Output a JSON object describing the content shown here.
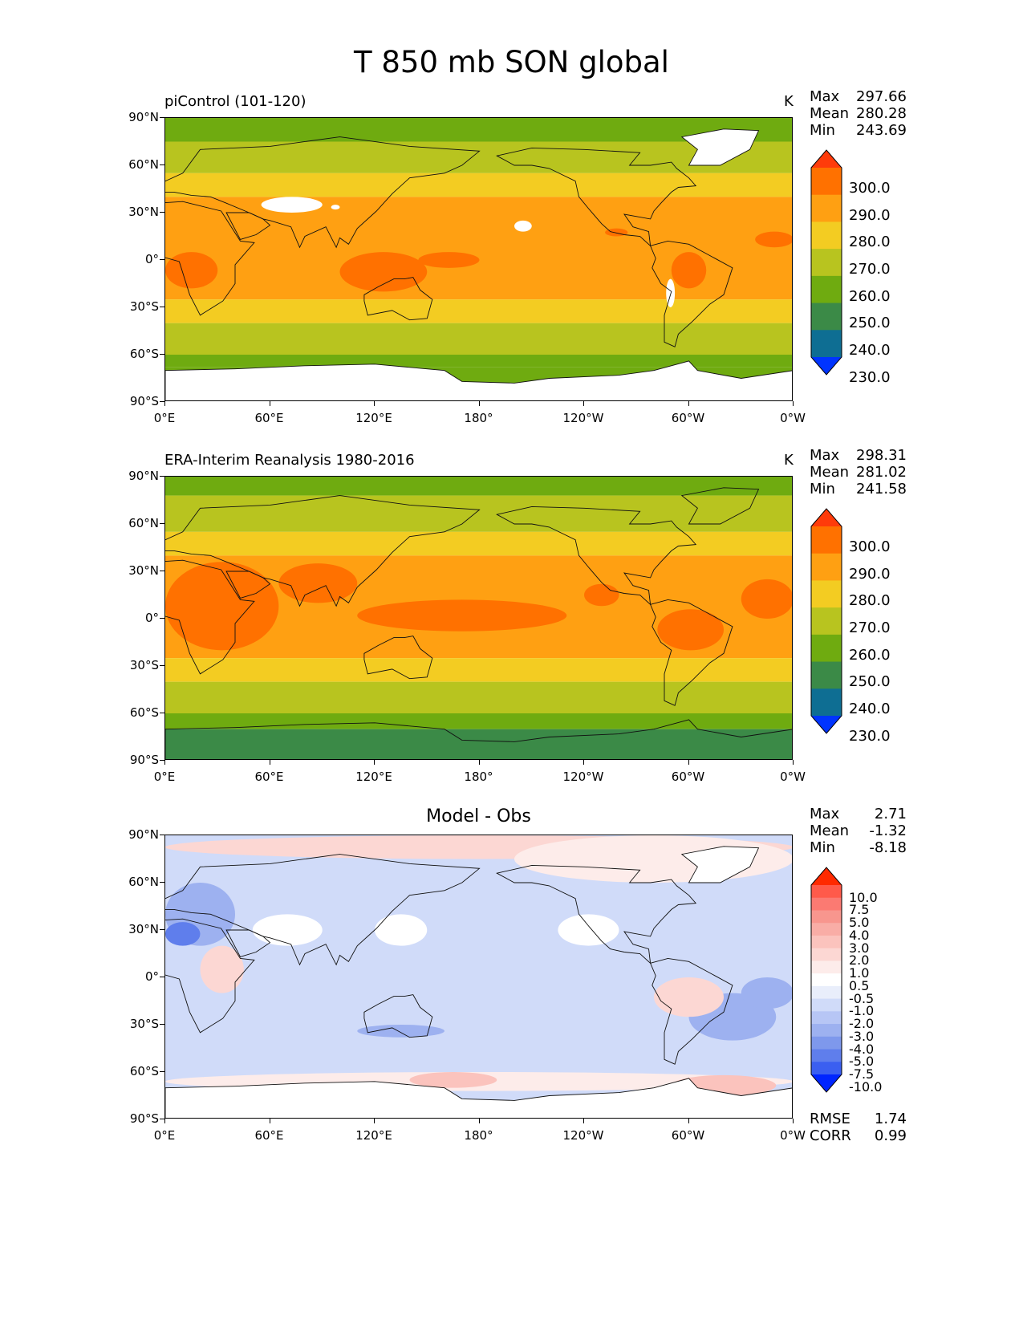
{
  "figure": {
    "title": "T 850 mb SON global"
  },
  "axes": {
    "lat_labels": [
      "90°N",
      "60°N",
      "30°N",
      "0°",
      "30°S",
      "60°S",
      "90°S"
    ],
    "lon_labels": [
      "0°E",
      "60°E",
      "120°E",
      "180°",
      "120°W",
      "60°W",
      "0°W"
    ]
  },
  "panels": [
    {
      "title": "piControl (101-120)",
      "units": "K",
      "stats": {
        "max_label": "Max",
        "max": "297.66",
        "mean_label": "Mean",
        "mean": "280.28",
        "min_label": "Min",
        "min": "243.69"
      },
      "colorbar": {
        "labels": [
          "300.0",
          "290.0",
          "280.0",
          "270.0",
          "260.0",
          "250.0",
          "240.0",
          "230.0"
        ],
        "colors": [
          "#ff3b0a",
          "#ff7100",
          "#ffa012",
          "#f3cc22",
          "#b8c41f",
          "#6fab10",
          "#3b8a47",
          "#0e6e93",
          "#0034ff"
        ]
      }
    },
    {
      "title": "ERA-Interim Reanalysis 1980-2016",
      "units": "K",
      "stats": {
        "max_label": "Max",
        "max": "298.31",
        "mean_label": "Mean",
        "mean": "281.02",
        "min_label": "Min",
        "min": "241.58"
      },
      "colorbar": {
        "labels": [
          "300.0",
          "290.0",
          "280.0",
          "270.0",
          "260.0",
          "250.0",
          "240.0",
          "230.0"
        ],
        "colors": [
          "#ff3b0a",
          "#ff7100",
          "#ffa012",
          "#f3cc22",
          "#b8c41f",
          "#6fab10",
          "#3b8a47",
          "#0e6e93",
          "#0034ff"
        ]
      }
    },
    {
      "title": "Model - Obs",
      "stats": {
        "max_label": "Max",
        "max": "2.71",
        "mean_label": "Mean",
        "mean": "-1.32",
        "min_label": "Min",
        "min": "-8.18"
      },
      "colorbar": {
        "labels": [
          "10.0",
          "7.5",
          "5.0",
          "4.0",
          "3.0",
          "2.0",
          "1.0",
          "0.5",
          "-0.5",
          "-1.0",
          "-2.0",
          "-3.0",
          "-4.0",
          "-5.0",
          "-7.5",
          "-10.0"
        ],
        "colors": [
          "#ff2a00",
          "#ff5a4a",
          "#fb7a72",
          "#f8968e",
          "#f9ada6",
          "#fbc3bd",
          "#fcd7d3",
          "#fdecea",
          "#ffffff",
          "#e9eefb",
          "#d0dbf9",
          "#b7c6f5",
          "#9db1f0",
          "#7e98ec",
          "#5f7eec",
          "#3b5ff0",
          "#0025ff"
        ]
      },
      "error_stats": {
        "rmse_label": "RMSE",
        "rmse": "1.74",
        "corr_label": "CORR",
        "corr": "0.99"
      }
    }
  ]
}
